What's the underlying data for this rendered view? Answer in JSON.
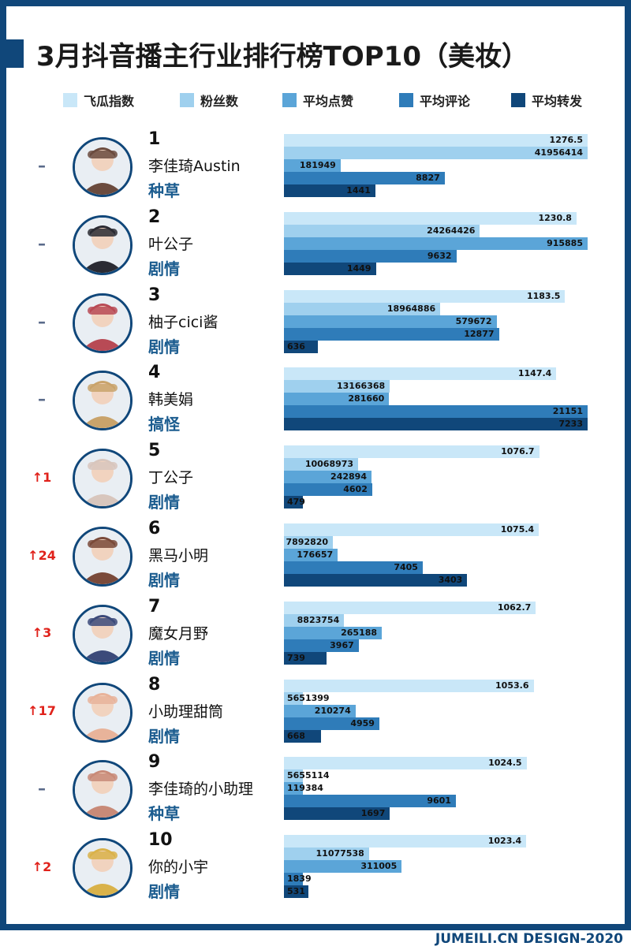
{
  "header": {
    "title": "3月抖音播主行业排行榜TOP10（美妆）"
  },
  "footer": {
    "text": "JUMEILI.CN DESIGN-2020"
  },
  "chart_data": {
    "type": "bar",
    "title": "3月抖音播主行业排行榜TOP10（美妆）",
    "legend_position": "top",
    "series": [
      {
        "name": "飞瓜指数",
        "color": "#c9e7f8"
      },
      {
        "name": "粉丝数",
        "color": "#9fd0ee"
      },
      {
        "name": "平均点赞",
        "color": "#5ba5d8"
      },
      {
        "name": "平均评论",
        "color": "#2f7cb9"
      },
      {
        "name": "平均转发",
        "color": "#10477a"
      }
    ],
    "rows": [
      {
        "rank": "1",
        "name": "李佳琦Austin",
        "category": "种草",
        "change": "–",
        "up": false,
        "avatar_color": "#6b4b3e",
        "values": [
          1276.5,
          41956414,
          181949,
          8827,
          1441
        ],
        "labels": [
          "1276.5",
          "41956414",
          "181949",
          "8827",
          "1441"
        ]
      },
      {
        "rank": "2",
        "name": "叶公子",
        "category": "剧情",
        "change": "–",
        "up": false,
        "avatar_color": "#2b2b33",
        "values": [
          1230.8,
          24264426,
          915885,
          9632,
          1449
        ],
        "labels": [
          "1230.8",
          "24264426",
          "915885",
          "9632",
          "1449"
        ]
      },
      {
        "rank": "3",
        "name": "柚子cici酱",
        "category": "剧情",
        "change": "–",
        "up": false,
        "avatar_color": "#b84a55",
        "values": [
          1183.5,
          18964886,
          579672,
          12877,
          636
        ],
        "labels": [
          "1183.5",
          "18964886",
          "579672",
          "12877",
          "636"
        ]
      },
      {
        "rank": "4",
        "name": "韩美娟",
        "category": "搞怪",
        "change": "–",
        "up": false,
        "avatar_color": "#c9a36b",
        "values": [
          1147.4,
          13166368,
          281660,
          21151,
          7233
        ],
        "labels": [
          "1147.4",
          "13166368",
          "281660",
          "21151",
          "7233"
        ]
      },
      {
        "rank": "5",
        "name": "丁公子",
        "category": "剧情",
        "change": "↑1",
        "up": true,
        "avatar_color": "#d8c6bd",
        "values": [
          1076.7,
          10068973,
          242894,
          4602,
          479
        ],
        "labels": [
          "1076.7",
          "10068973",
          "242894",
          "4602",
          "479"
        ]
      },
      {
        "rank": "6",
        "name": "黑马小明",
        "category": "剧情",
        "change": "↑24",
        "up": true,
        "avatar_color": "#7a4a3a",
        "values": [
          1075.4,
          7892820,
          176657,
          7405,
          3403
        ],
        "labels": [
          "1075.4",
          "7892820",
          "176657",
          "7405",
          "3403"
        ]
      },
      {
        "rank": "7",
        "name": "魔女月野",
        "category": "剧情",
        "change": "↑3",
        "up": true,
        "avatar_color": "#3c4a7a",
        "values": [
          1062.7,
          8823754,
          265188,
          3967,
          739
        ],
        "labels": [
          "1062.7",
          "8823754",
          "265188",
          "3967",
          "739"
        ]
      },
      {
        "rank": "8",
        "name": "小助理甜筒",
        "category": "剧情",
        "change": "↑17",
        "up": true,
        "avatar_color": "#e8b39a",
        "values": [
          1053.6,
          5651399,
          210274,
          4959,
          668
        ],
        "labels": [
          "1053.6",
          "5651399",
          "210274",
          "4959",
          "668"
        ]
      },
      {
        "rank": "9",
        "name": "李佳琦的小助理",
        "category": "种草",
        "change": "–",
        "up": false,
        "avatar_color": "#c88a78",
        "values": [
          1024.5,
          5655114,
          119384,
          9601,
          1697
        ],
        "labels": [
          "1024.5",
          "5655114",
          "119384",
          "9601",
          "1697"
        ]
      },
      {
        "rank": "10",
        "name": "你的小宇",
        "category": "剧情",
        "change": "↑2",
        "up": true,
        "avatar_color": "#d9b24a",
        "values": [
          1023.4,
          11077538,
          311005,
          1839,
          531
        ],
        "labels": [
          "1023.4",
          "11077538",
          "311005",
          "1839",
          "531"
        ]
      }
    ]
  }
}
